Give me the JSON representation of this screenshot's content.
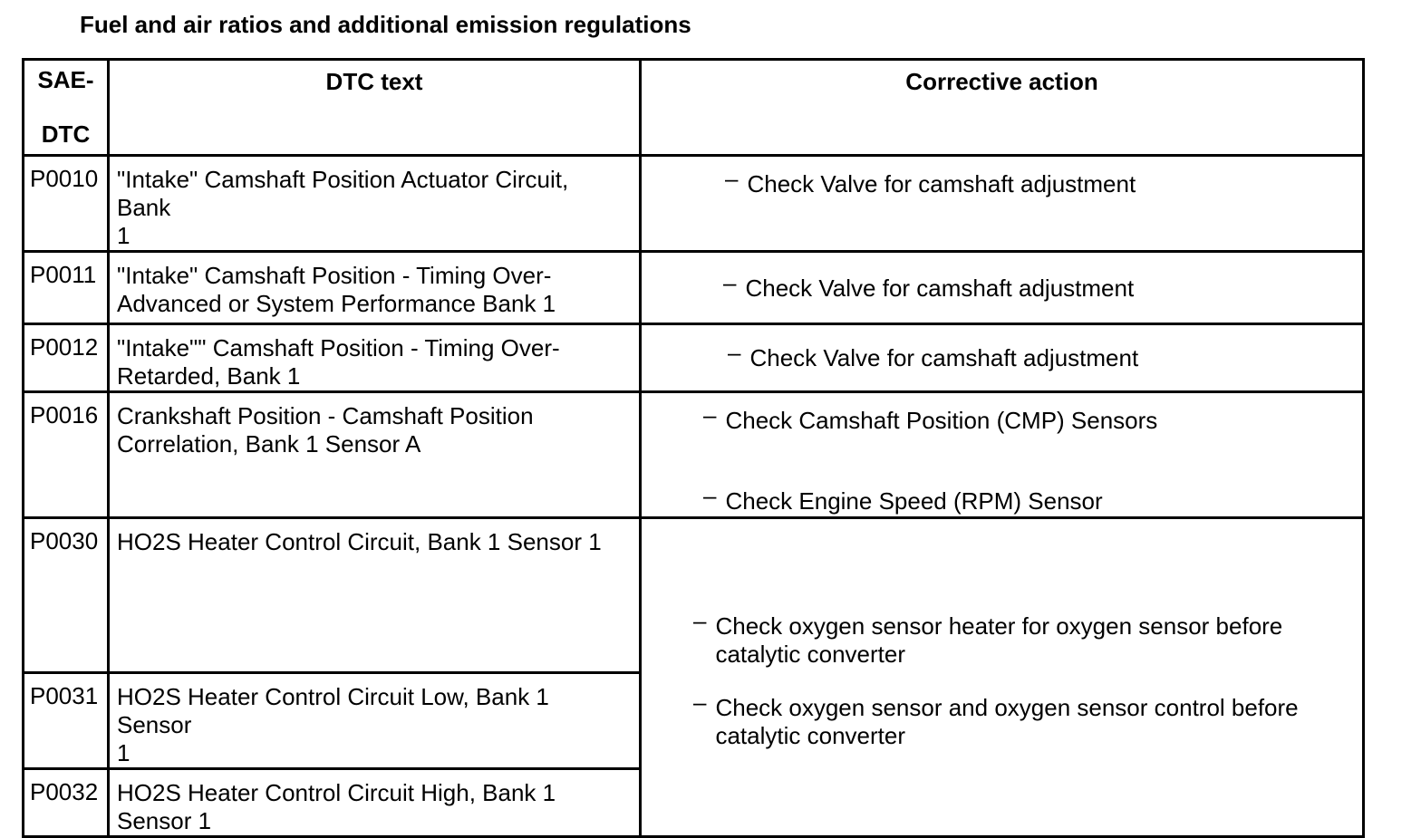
{
  "page_title": "Fuel and air ratios and additional emission regulations",
  "bullet_char": "–",
  "table": {
    "header": {
      "col1_line1": "SAE-",
      "col1_line2": "DTC",
      "col2": "DTC text",
      "col3": "Corrective action"
    },
    "rows": [
      {
        "code": "P0010",
        "dtc_text": "\"Intake\" Camshaft Position Actuator Circuit, Bank\n1",
        "actions": [
          "Check Valve for camshaft adjustment"
        ]
      },
      {
        "code": "P0011",
        "dtc_text": "\"Intake\" Camshaft Position - Timing Over-\nAdvanced or System Performance Bank 1",
        "actions": [
          "Check Valve for camshaft adjustment"
        ]
      },
      {
        "code": "P0012",
        "dtc_text": "\"Intake\"\" Camshaft Position - Timing Over-\nRetarded, Bank 1",
        "actions": [
          "Check Valve for camshaft adjustment"
        ]
      },
      {
        "code": "P0016",
        "dtc_text": "Crankshaft Position - Camshaft Position\nCorrelation, Bank 1 Sensor A",
        "actions": [
          "Check Camshaft Position (CMP) Sensors",
          "Check Engine Speed (RPM) Sensor"
        ]
      },
      {
        "code": "P0030",
        "dtc_text": "HO2S Heater Control Circuit, Bank 1 Sensor 1"
      },
      {
        "code": "P0031",
        "dtc_text": "HO2S Heater Control Circuit Low, Bank 1 Sensor\n1"
      },
      {
        "code": "P0032",
        "dtc_text": "HO2S Heater Control Circuit High, Bank 1\nSensor 1"
      }
    ],
    "merged_actions": [
      "Check oxygen sensor heater for oxygen sensor before\ncatalytic converter",
      "Check oxygen sensor and oxygen sensor control before\ncatalytic converter"
    ]
  }
}
